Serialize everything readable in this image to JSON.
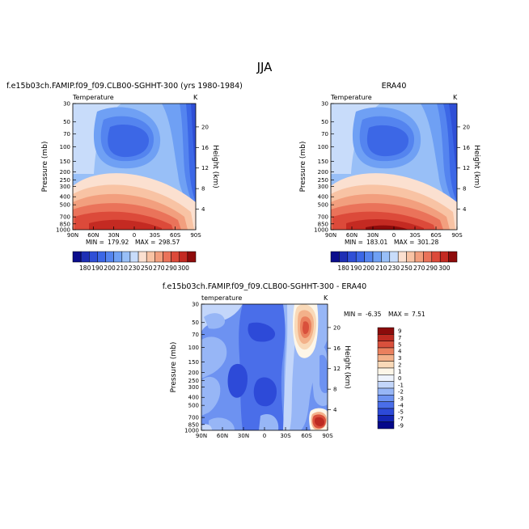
{
  "page_title": "JJA",
  "colors": {
    "temp_scale": [
      "#0b0d8c",
      "#1e2fb5",
      "#2f4fd6",
      "#3c67e6",
      "#5484ef",
      "#6fa0f4",
      "#98bff7",
      "#c8dcfa",
      "#fbe0d0",
      "#f8c3a4",
      "#f29f7e",
      "#ea735a",
      "#dc4a3a",
      "#c42a22",
      "#8e0b0b"
    ],
    "diff_scale": [
      "#05088a",
      "#1426b4",
      "#2d4ad8",
      "#4a6ee9",
      "#6d92f1",
      "#97b6f6",
      "#c3d6fa",
      "#eef3fd",
      "#fdf6e8",
      "#f9d9b8",
      "#f3b18a",
      "#ea805e",
      "#d9503c",
      "#bd2a21",
      "#8b0b0b"
    ]
  },
  "chart_data": [
    {
      "type": "heatmap",
      "title": "f.e15b03ch.FAMIP.f09_f09.CLB00-SGHHT-300 (yrs 1980-1984)",
      "subtitle_left": "Temperature",
      "subtitle_right": "K",
      "ylabel": "Pressure (mb)",
      "ylabel_right": "Height (km)",
      "x_ticks": [
        "90N",
        "60N",
        "30N",
        "0",
        "30S",
        "60S",
        "90S"
      ],
      "y_ticks": [
        "30",
        "50",
        "70",
        "100",
        "150",
        "200",
        "250",
        "300",
        "400",
        "500",
        "700",
        "850",
        "1000"
      ],
      "y_ticks_right": [
        "20",
        "16",
        "12",
        "8",
        "4"
      ],
      "stats": {
        "min_label": "MIN =",
        "min": "179.92",
        "max_label": "MAX =",
        "max": "298.57"
      },
      "colorbar_labels": [
        "180",
        "190",
        "200",
        "210",
        "230",
        "250",
        "270",
        "290",
        "300"
      ]
    },
    {
      "type": "heatmap",
      "title": "ERA40",
      "subtitle_left": "Temperature",
      "subtitle_right": "K",
      "ylabel": "Pressure (mb)",
      "ylabel_right": "Height (km)",
      "x_ticks": [
        "90N",
        "60N",
        "30N",
        "0",
        "30S",
        "60S",
        "90S"
      ],
      "y_ticks": [
        "30",
        "50",
        "70",
        "100",
        "150",
        "200",
        "250",
        "300",
        "400",
        "500",
        "700",
        "850",
        "1000"
      ],
      "y_ticks_right": [
        "20",
        "16",
        "12",
        "8",
        "4"
      ],
      "stats": {
        "min_label": "MIN =",
        "min": "183.01",
        "max_label": "MAX =",
        "max": "301.28"
      },
      "colorbar_labels": [
        "180",
        "190",
        "200",
        "210",
        "230",
        "250",
        "270",
        "290",
        "300"
      ]
    },
    {
      "type": "heatmap",
      "title": "f.e15b03ch.FAMIP.f09_f09.CLB00-SGHHT-300 - ERA40",
      "subtitle_left": "temperature",
      "subtitle_right": "K",
      "ylabel": "Pressure (mb)",
      "ylabel_right": "Height (km)",
      "x_ticks": [
        "90N",
        "60N",
        "30N",
        "0",
        "30S",
        "60S",
        "90S"
      ],
      "y_ticks": [
        "30",
        "50",
        "70",
        "100",
        "150",
        "200",
        "250",
        "300",
        "400",
        "500",
        "700",
        "850",
        "1000"
      ],
      "y_ticks_right": [
        "20",
        "16",
        "12",
        "8",
        "4"
      ],
      "stats": {
        "min_label": "MIN =",
        "min": "-6.35",
        "max_label": "MAX =",
        "max": "7.51"
      },
      "colorbar_labels": [
        "9",
        "7",
        "5",
        "4",
        "3",
        "2",
        "1",
        "0",
        "-1",
        "-2",
        "-3",
        "-4",
        "-5",
        "-7",
        "-9"
      ]
    }
  ]
}
